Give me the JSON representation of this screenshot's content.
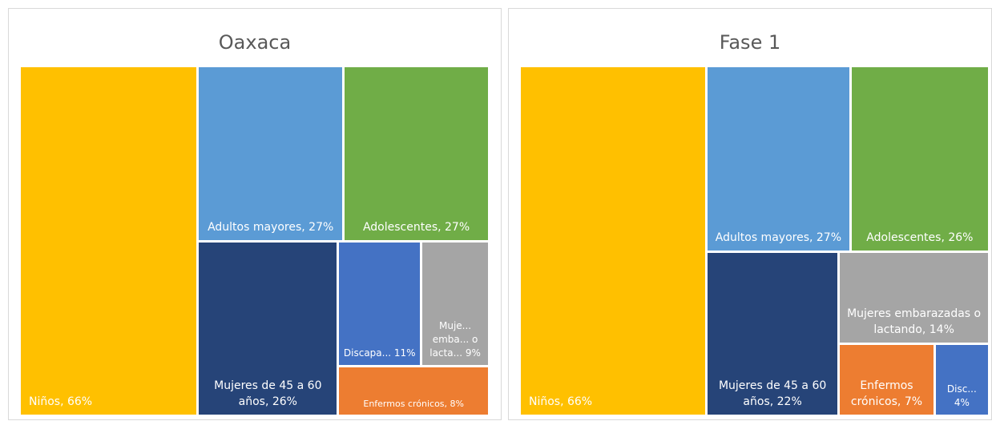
{
  "chart_data": [
    {
      "type": "treemap",
      "title": "Oaxaca",
      "value_labels": [
        "Niños, 66%",
        "Adultos mayores, 27%",
        "Adolescentes, 27%",
        "Mujeres de 45 a 60 años, 26%",
        "Discapa... 11%",
        "Muje... emba... o lacta... 9%",
        "Enfermos crónicos, 8%"
      ],
      "values": [
        66,
        27,
        27,
        26,
        11,
        9,
        8
      ],
      "colors": [
        "#ffc000",
        "#5b9bd5",
        "#70ad47",
        "#264478",
        "#4472c4",
        "#a5a5a5",
        "#ed7d31"
      ]
    },
    {
      "type": "treemap",
      "title": "Fase 1",
      "value_labels": [
        "Niños, 66%",
        "Adultos mayores, 27%",
        "Adolescentes, 26%",
        "Mujeres de 45 a 60 años, 22%",
        "Mujeres embarazadas o lactando, 14%",
        "Enfermos crónicos, 7%",
        "Disc... 4%"
      ],
      "values": [
        66,
        27,
        26,
        22,
        14,
        7,
        4
      ],
      "colors": [
        "#ffc000",
        "#5b9bd5",
        "#70ad47",
        "#264478",
        "#a5a5a5",
        "#ed7d31",
        "#4472c4"
      ]
    }
  ]
}
